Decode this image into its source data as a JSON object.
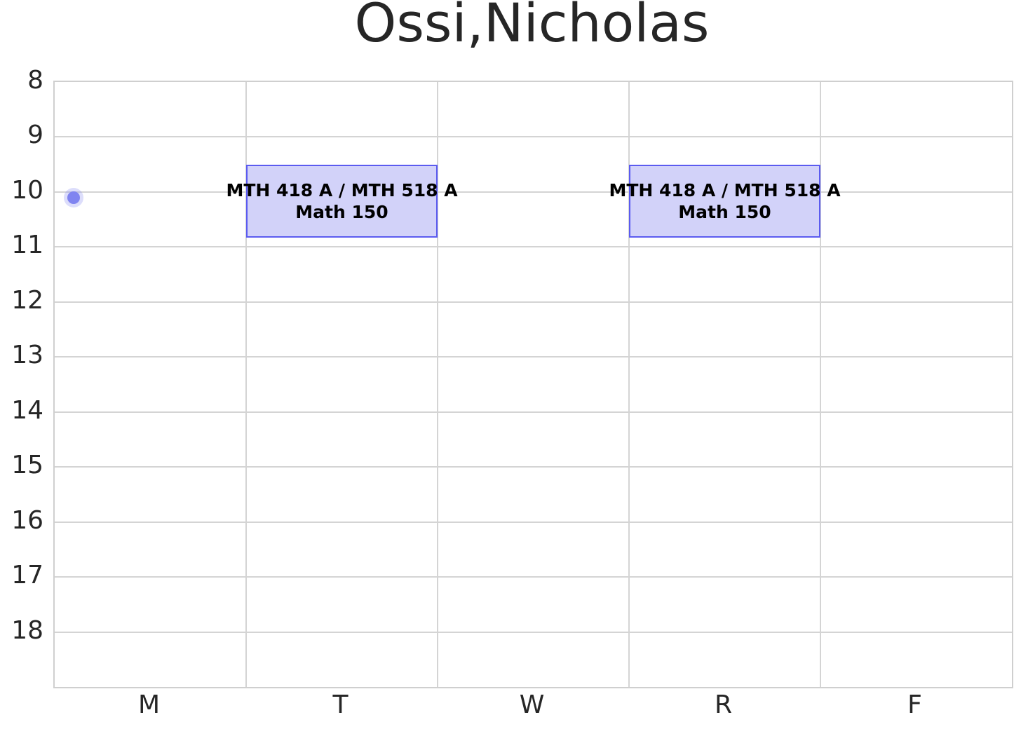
{
  "title": "Ossi,Nicholas",
  "chart_data": {
    "type": "schedule",
    "title": "Ossi,Nicholas",
    "x_categories": [
      "M",
      "T",
      "W",
      "R",
      "F"
    ],
    "y_axis": {
      "ticks": [
        8,
        9,
        10,
        11,
        12,
        13,
        14,
        15,
        16,
        17,
        18
      ],
      "min": 8,
      "max": 19,
      "inverted": true
    },
    "grid": true,
    "events": [
      {
        "day": "T",
        "start": 9.5,
        "end": 10.83,
        "title": "MTH 418 A / MTH 518 A",
        "subtitle": "Math 150"
      },
      {
        "day": "R",
        "start": 9.5,
        "end": 10.83,
        "title": "MTH 418 A / MTH 518 A",
        "subtitle": "Math 150"
      }
    ],
    "points": [
      {
        "day": "M",
        "column_fraction": 0.1,
        "time": 10.1
      }
    ],
    "colors": {
      "event_fill": "#d2d2f9",
      "event_border": "#5b5bf0",
      "point": "#8084f0",
      "point_halo": "rgba(128,132,240,0.28)",
      "grid": "#d4d4d4",
      "axis_border": "#cfcfcf",
      "text": "#262626"
    }
  }
}
